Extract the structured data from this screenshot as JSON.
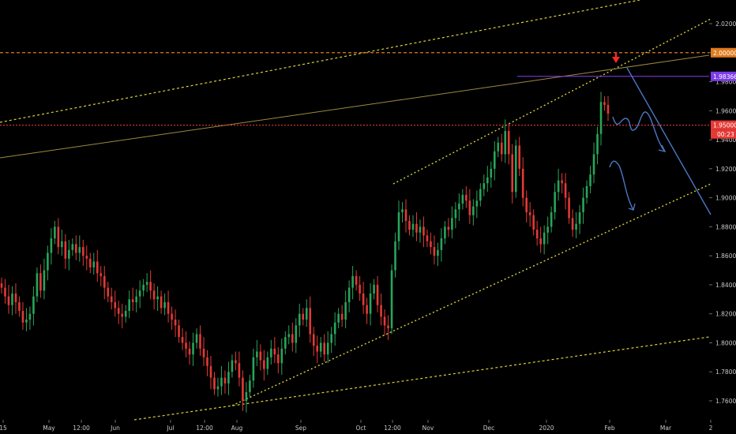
{
  "chart_data": {
    "type": "line",
    "style": "candlestick",
    "title": "",
    "xlabel": "",
    "ylabel": "",
    "ylim": [
      1.744,
      2.032
    ],
    "y_ticks": [
      "1.76000",
      "1.78000",
      "1.80000",
      "1.82000",
      "1.84000",
      "1.86000",
      "1.88000",
      "1.90000",
      "1.92000",
      "1.94000",
      "1.96000",
      "1.98000",
      "2.00000",
      "2.02000"
    ],
    "x_ticks": [
      "15",
      "May",
      "12:00",
      "Jun",
      "Jul",
      "12:00",
      "Aug",
      "Sep",
      "Oct",
      "12:00",
      "Nov",
      "Dec",
      "2020",
      "Feb",
      "Mar",
      "2"
    ],
    "series": [
      {
        "values": [
          1.838,
          1.832,
          1.826,
          1.834,
          1.828,
          1.822,
          1.814,
          1.816,
          1.82,
          1.832,
          1.848,
          1.836,
          1.85,
          1.862,
          1.872,
          1.88,
          1.866,
          1.87,
          1.858,
          1.864,
          1.868,
          1.862,
          1.866,
          1.86,
          1.858,
          1.852,
          1.856,
          1.848,
          1.846,
          1.838,
          1.832,
          1.828,
          1.824,
          1.82,
          1.818,
          1.822,
          1.83,
          1.828,
          1.832,
          1.836,
          1.84,
          1.842,
          1.836,
          1.83,
          1.832,
          1.824,
          1.828,
          1.82,
          1.816,
          1.812,
          1.804,
          1.8,
          1.796,
          1.792,
          1.8,
          1.806,
          1.796,
          1.79,
          1.784,
          1.776,
          1.768,
          1.77,
          1.776,
          1.772,
          1.78,
          1.788,
          1.786,
          1.776,
          1.76,
          1.766,
          1.774,
          1.79,
          1.794,
          1.788,
          1.782,
          1.79,
          1.796,
          1.792,
          1.786,
          1.796,
          1.804,
          1.806,
          1.8,
          1.812,
          1.82,
          1.816,
          1.824,
          1.806,
          1.798,
          1.794,
          1.8,
          1.792,
          1.8,
          1.806,
          1.814,
          1.82,
          1.816,
          1.828,
          1.838,
          1.846,
          1.84,
          1.834,
          1.826,
          1.82,
          1.834,
          1.84,
          1.826,
          1.818,
          1.812,
          1.81,
          1.85,
          1.87,
          1.89,
          1.892,
          1.884,
          1.878,
          1.882,
          1.876,
          1.88,
          1.874,
          1.87,
          1.866,
          1.86,
          1.864,
          1.872,
          1.88,
          1.878,
          1.886,
          1.892,
          1.896,
          1.902,
          1.898,
          1.888,
          1.894,
          1.898,
          1.906,
          1.91,
          1.914,
          1.92,
          1.932,
          1.938,
          1.93,
          1.946,
          1.93,
          1.904,
          1.936,
          1.92,
          1.9,
          1.89,
          1.888,
          1.878,
          1.872,
          1.868,
          1.876,
          1.88,
          1.89,
          1.904,
          1.912,
          1.91,
          1.9,
          1.886,
          1.878,
          1.882,
          1.89,
          1.9,
          1.908,
          1.916,
          1.93,
          1.944,
          1.966,
          1.964,
          1.958
        ]
      }
    ],
    "price_levels": [
      {
        "value": "2.00000",
        "color": "#e07b1d"
      },
      {
        "value": "1.98366",
        "color": "#8a3df0"
      },
      {
        "value": "1.95000",
        "color": "#e53935"
      }
    ],
    "countdown": "00:23",
    "colors": {
      "bull": "#26a65b",
      "bear": "#e53935",
      "trendline_yellow": "#d8d23a",
      "trendline_olive": "#9c8a3e",
      "projection_blue": "#4a78c4",
      "arrow_red": "#ef2b2b"
    }
  }
}
